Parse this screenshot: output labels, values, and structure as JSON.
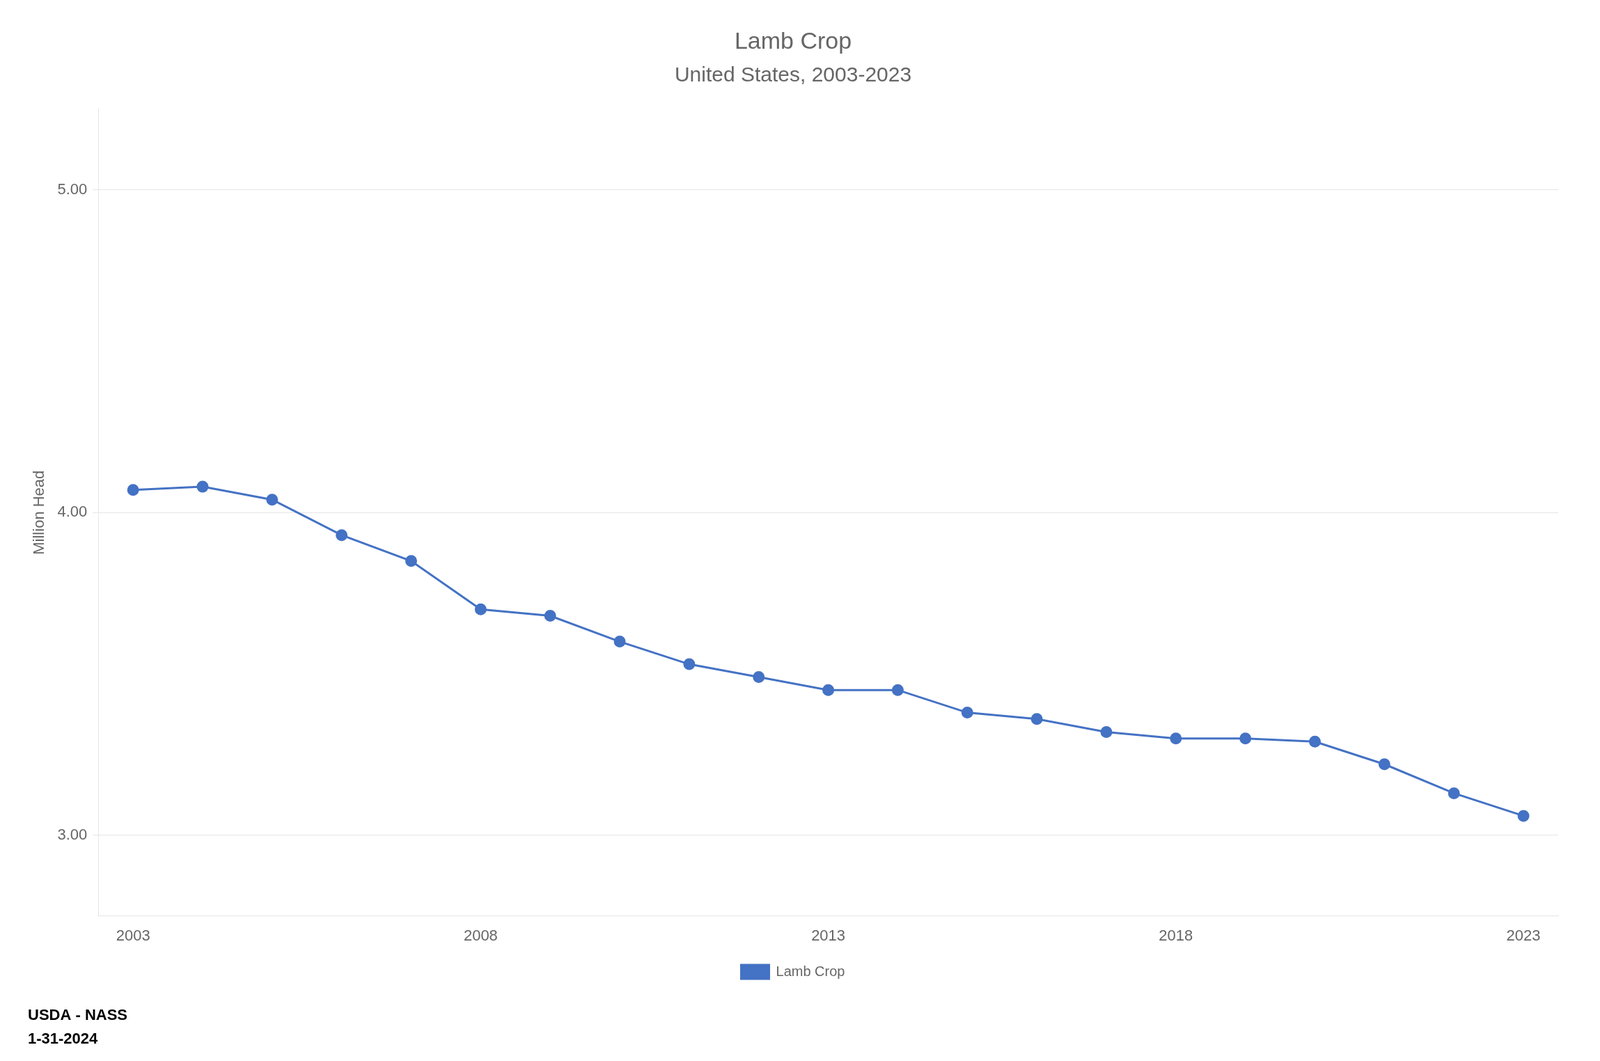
{
  "chart_data": {
    "type": "line",
    "title": "Lamb Crop",
    "subtitle": "United States, 2003-2023",
    "y_label": "Million Head",
    "annotations": [
      "USDA - NASS",
      "1-31-2024"
    ],
    "x": [
      2003,
      2004,
      2005,
      2006,
      2007,
      2008,
      2009,
      2010,
      2011,
      2012,
      2013,
      2014,
      2015,
      2016,
      2017,
      2018,
      2019,
      2020,
      2021,
      2022,
      2023
    ],
    "series": [
      {
        "name": "Lamb Crop",
        "color": "#4472C4",
        "marker": "circle",
        "values": [
          4.07,
          4.08,
          4.04,
          3.93,
          3.85,
          3.7,
          3.68,
          3.6,
          3.53,
          3.49,
          3.45,
          3.45,
          3.38,
          3.36,
          3.32,
          3.3,
          3.3,
          3.29,
          3.22,
          3.13,
          3.06
        ]
      }
    ],
    "xlim": [
      2002.5,
      2023.5
    ],
    "xticks": [
      2003,
      2008,
      2013,
      2018,
      2023
    ],
    "ylim": [
      2.75,
      5.25
    ],
    "yticks": [
      {
        "value": 3.0,
        "label": "3.00"
      },
      {
        "value": 4.0,
        "label": "4.00"
      },
      {
        "value": 5.0,
        "label": "5.00"
      }
    ],
    "grid": "y",
    "legend": "bottom"
  }
}
